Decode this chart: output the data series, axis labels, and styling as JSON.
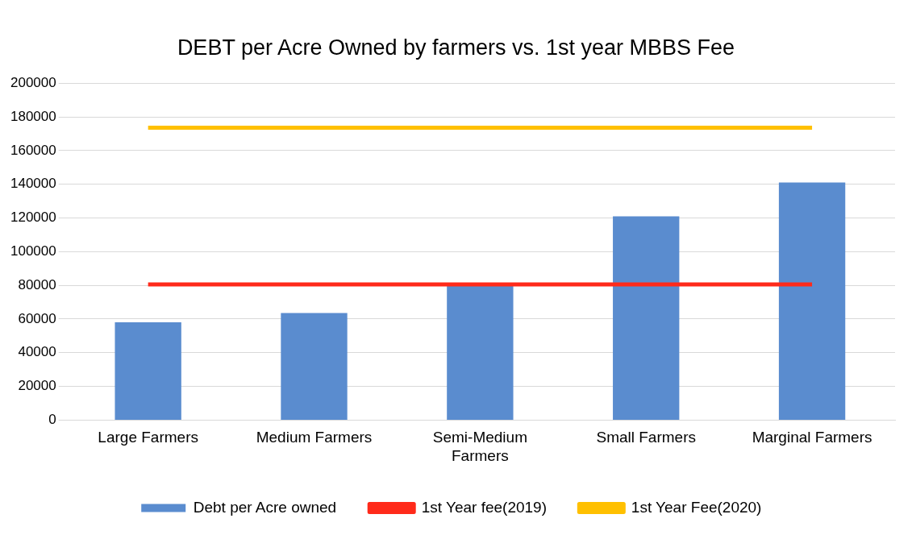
{
  "chart_data": {
    "type": "bar",
    "title": "DEBT per Acre Owned by farmers vs. 1st year MBBS Fee",
    "categories": [
      "Large Farmers",
      "Medium Farmers",
      "Semi-Medium Farmers",
      "Small Farmers",
      "Marginal Farmers"
    ],
    "series": [
      {
        "name": "Debt per Acre owned",
        "color": "#5a8ccf",
        "values": [
          58000,
          63500,
          80000,
          121000,
          141000
        ]
      },
      {
        "name": "1st Year fee(2019)",
        "type": "line",
        "color": "#ff2a1a",
        "values": [
          80500,
          80500,
          80500,
          80500,
          80500
        ]
      },
      {
        "name": "1st Year Fee(2020)",
        "type": "line",
        "color": "#ffc000",
        "values": [
          173500,
          173500,
          173500,
          173500,
          173500
        ]
      }
    ],
    "ylim": [
      0,
      200000
    ],
    "yticks": [
      0,
      20000,
      40000,
      60000,
      80000,
      100000,
      120000,
      140000,
      160000,
      180000,
      200000
    ],
    "grid": "y",
    "legend": "bottom",
    "marker": "none"
  }
}
